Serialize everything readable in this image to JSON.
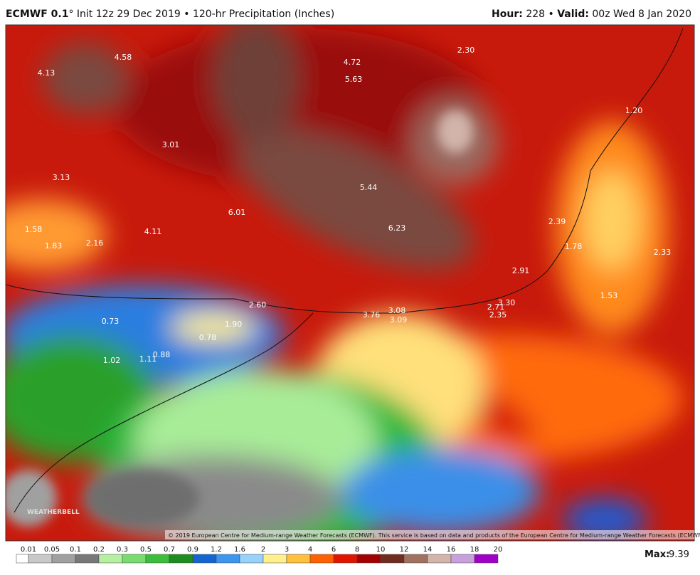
{
  "header": {
    "model": "ECMWF 0.1",
    "rest": "° Init 12z 29 Dec 2019 • 120-hr Precipitation (Inches)",
    "hour_label": "Hour:",
    "hour_rest": "228 •",
    "valid_label": "Valid:",
    "valid_rest": "00z Wed 8 Jan 2020"
  },
  "map": {
    "labels": [
      "4.58",
      "4.13",
      "4.72",
      "5.63",
      "2.30",
      "3.01",
      "3.13",
      "5.44",
      "6.01",
      "6.23",
      "1.58",
      "1.83",
      "2.16",
      "4.11",
      "2.39",
      "1.78",
      "2.33",
      "2.91",
      "1.53",
      "0.73",
      "2.60",
      "1.90",
      "3.76",
      "3.08",
      "3.09",
      "2.71",
      "3.30",
      "2.35",
      "0.78",
      "1.02",
      "1.11",
      "0.88",
      "1.20"
    ],
    "watermark": "WEATHERBELL",
    "copyright": "© 2019 European Centre for Medium-range Weather Forecasts (ECMWF). This service is based on data and products of the European Centre for Medium-range Weather Forecasts (ECMWF)."
  },
  "colorbar": {
    "ticks": [
      0.01,
      0.05,
      0.1,
      0.2,
      0.3,
      0.5,
      0.7,
      0.9,
      1.2,
      1.6,
      2,
      3,
      4,
      6,
      8,
      10,
      12,
      14,
      16,
      18,
      20
    ],
    "colors": [
      "#ffffff",
      "#c8c8c8",
      "#a0a0a0",
      "#787878",
      "#b4f0a0",
      "#78dc6e",
      "#3cbe3c",
      "#1e8c1e",
      "#1464d2",
      "#3c96f0",
      "#96d2fa",
      "#fff08c",
      "#ffc03c",
      "#ff6000",
      "#e11400",
      "#a50000",
      "#6e2d1e",
      "#a07060",
      "#d2b4aa",
      "#c8a0dc",
      "#a000c8"
    ]
  },
  "max": {
    "label": "Max:",
    "value": "9.39"
  }
}
